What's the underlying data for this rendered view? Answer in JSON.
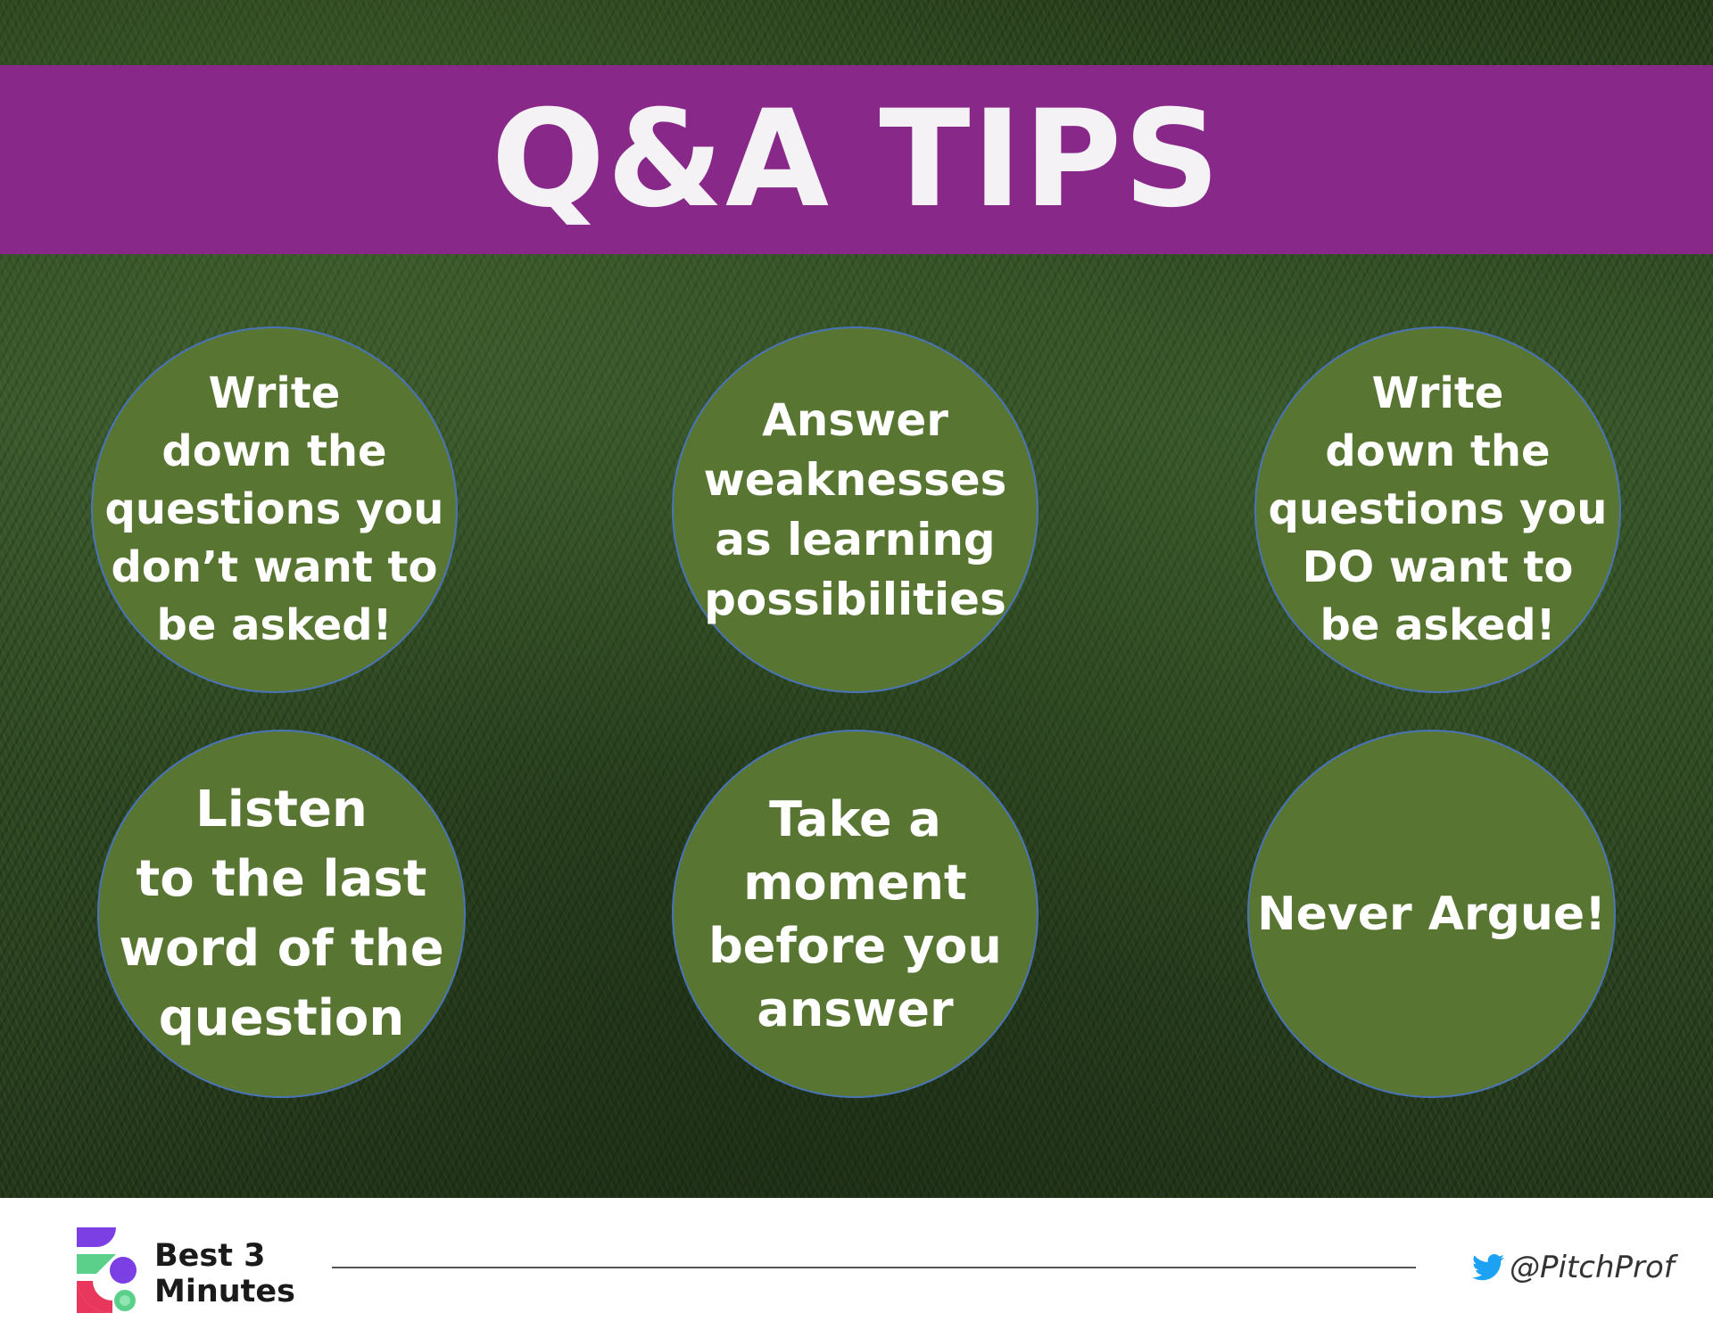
{
  "header": {
    "title": "Q&A TIPS"
  },
  "tips": [
    "Write\ndown the\nquestions you\ndon’t want to\nbe asked!",
    "Answer\nweaknesses\nas learning\npossibilities",
    "Write\ndown the\nquestions you\nDO want to\nbe asked!",
    "Listen\nto the last\nword of the\nquestion",
    "Take a\nmoment\nbefore you\nanswer",
    "Never Argue!"
  ],
  "footer": {
    "brand_line1": "Best 3",
    "brand_line2": "Minutes",
    "handle": "@PitchProf",
    "icons": {
      "logo": "best-3-minutes-logo",
      "social": "twitter-bird-icon"
    }
  },
  "colors": {
    "banner": "#88298a",
    "circle_fill": "#587632",
    "circle_border": "#4a74b8",
    "text": "#ffffff",
    "twitter": "#1da1f2"
  }
}
